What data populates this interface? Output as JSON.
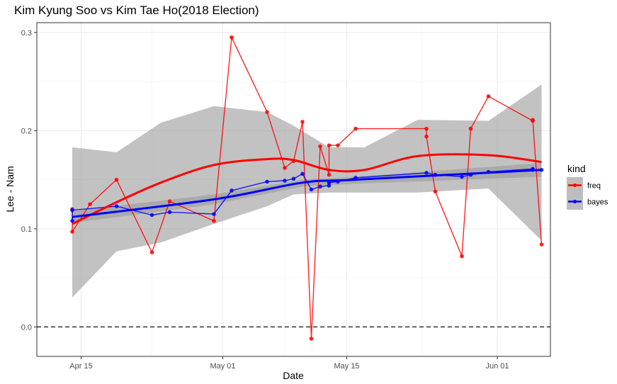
{
  "chart_data": {
    "type": "line",
    "title": "Kim Kyung Soo vs Kim Tae Ho(2018 Election)",
    "xlabel": "Date",
    "ylabel": "Lee - Nam",
    "x_ticks": [
      {
        "date": "2018-04-15",
        "label": "Apr 15"
      },
      {
        "date": "2018-05-01",
        "label": "May 01"
      },
      {
        "date": "2018-05-15",
        "label": "May 15"
      },
      {
        "date": "2018-06-01",
        "label": "Jun 01"
      }
    ],
    "y_ticks": [
      0.0,
      0.1,
      0.2,
      0.3
    ],
    "y_tick_labels": [
      "0.0",
      "0.1",
      "0.2",
      "0.3"
    ],
    "xlim": [
      "2018-04-10",
      "2018-06-07"
    ],
    "ylim": [
      -0.03,
      0.31
    ],
    "reference_line": {
      "y": 0,
      "style": "dashed"
    },
    "grid": true,
    "legend": {
      "title": "kind",
      "position": "right"
    },
    "series": [
      {
        "name": "freq",
        "color": "#ff0000",
        "points": [
          {
            "x": "2018-04-14",
            "y": 0.12
          },
          {
            "x": "2018-04-14",
            "y": 0.097
          },
          {
            "x": "2018-04-16",
            "y": 0.125
          },
          {
            "x": "2018-04-19",
            "y": 0.15
          },
          {
            "x": "2018-04-23",
            "y": 0.076
          },
          {
            "x": "2018-04-25",
            "y": 0.128
          },
          {
            "x": "2018-04-30",
            "y": 0.108
          },
          {
            "x": "2018-05-02",
            "y": 0.295
          },
          {
            "x": "2018-05-06",
            "y": 0.219
          },
          {
            "x": "2018-05-08",
            "y": 0.162
          },
          {
            "x": "2018-05-09",
            "y": 0.169
          },
          {
            "x": "2018-05-10",
            "y": 0.209
          },
          {
            "x": "2018-05-11",
            "y": -0.012
          },
          {
            "x": "2018-05-12",
            "y": 0.184
          },
          {
            "x": "2018-05-13",
            "y": 0.155
          },
          {
            "x": "2018-05-13",
            "y": 0.185
          },
          {
            "x": "2018-05-14",
            "y": 0.185
          },
          {
            "x": "2018-05-16",
            "y": 0.202
          },
          {
            "x": "2018-05-24",
            "y": 0.202
          },
          {
            "x": "2018-05-24",
            "y": 0.194
          },
          {
            "x": "2018-05-25",
            "y": 0.138
          },
          {
            "x": "2018-05-28",
            "y": 0.072
          },
          {
            "x": "2018-05-29",
            "y": 0.202
          },
          {
            "x": "2018-05-31",
            "y": 0.235
          },
          {
            "x": "2018-06-05",
            "y": 0.21
          },
          {
            "x": "2018-06-05",
            "y": 0.211
          },
          {
            "x": "2018-06-06",
            "y": 0.084
          }
        ]
      },
      {
        "name": "bayes",
        "color": "#0000ff",
        "points": [
          {
            "x": "2018-04-14",
            "y": 0.108
          },
          {
            "x": "2018-04-14",
            "y": 0.119
          },
          {
            "x": "2018-04-19",
            "y": 0.123
          },
          {
            "x": "2018-04-23",
            "y": 0.114
          },
          {
            "x": "2018-04-25",
            "y": 0.117
          },
          {
            "x": "2018-04-30",
            "y": 0.115
          },
          {
            "x": "2018-05-02",
            "y": 0.139
          },
          {
            "x": "2018-05-06",
            "y": 0.148
          },
          {
            "x": "2018-05-08",
            "y": 0.149
          },
          {
            "x": "2018-05-09",
            "y": 0.151
          },
          {
            "x": "2018-05-10",
            "y": 0.156
          },
          {
            "x": "2018-05-11",
            "y": 0.14
          },
          {
            "x": "2018-05-12",
            "y": 0.143
          },
          {
            "x": "2018-05-13",
            "y": 0.144
          },
          {
            "x": "2018-05-13",
            "y": 0.147
          },
          {
            "x": "2018-05-14",
            "y": 0.148
          },
          {
            "x": "2018-05-16",
            "y": 0.152
          },
          {
            "x": "2018-05-24",
            "y": 0.157
          },
          {
            "x": "2018-05-25",
            "y": 0.155
          },
          {
            "x": "2018-05-28",
            "y": 0.153
          },
          {
            "x": "2018-05-29",
            "y": 0.155
          },
          {
            "x": "2018-05-31",
            "y": 0.158
          },
          {
            "x": "2018-06-05",
            "y": 0.161
          },
          {
            "x": "2018-06-05",
            "y": 0.16
          },
          {
            "x": "2018-06-06",
            "y": 0.16
          }
        ]
      }
    ],
    "smooth": [
      {
        "series": "freq",
        "color": "#ff0000",
        "fit": [
          {
            "x": "2018-04-14",
            "y": 0.105
          },
          {
            "x": "2018-04-19",
            "y": 0.127
          },
          {
            "x": "2018-04-24",
            "y": 0.147
          },
          {
            "x": "2018-04-30",
            "y": 0.165
          },
          {
            "x": "2018-05-06",
            "y": 0.171
          },
          {
            "x": "2018-05-09",
            "y": 0.17
          },
          {
            "x": "2018-05-13",
            "y": 0.16
          },
          {
            "x": "2018-05-17",
            "y": 0.16
          },
          {
            "x": "2018-05-23",
            "y": 0.174
          },
          {
            "x": "2018-05-31",
            "y": 0.175
          },
          {
            "x": "2018-06-06",
            "y": 0.168
          }
        ],
        "band_upper": [
          0.183,
          0.178,
          0.208,
          0.225,
          0.219,
          0.205,
          0.183,
          0.183,
          0.211,
          0.21,
          0.247
        ],
        "band_lower": [
          0.03,
          0.077,
          0.086,
          0.105,
          0.123,
          0.135,
          0.137,
          0.137,
          0.137,
          0.141,
          0.088
        ]
      },
      {
        "series": "bayes",
        "color": "#0000ff",
        "fit": [
          {
            "x": "2018-04-14",
            "y": 0.112
          },
          {
            "x": "2018-04-30",
            "y": 0.13
          },
          {
            "x": "2018-05-10",
            "y": 0.147
          },
          {
            "x": "2018-05-16",
            "y": 0.15
          },
          {
            "x": "2018-06-06",
            "y": 0.16
          }
        ],
        "band_upper": [
          0.118,
          0.135,
          0.15,
          0.153,
          0.167
        ],
        "band_lower": [
          0.106,
          0.125,
          0.143,
          0.146,
          0.153
        ]
      }
    ]
  }
}
